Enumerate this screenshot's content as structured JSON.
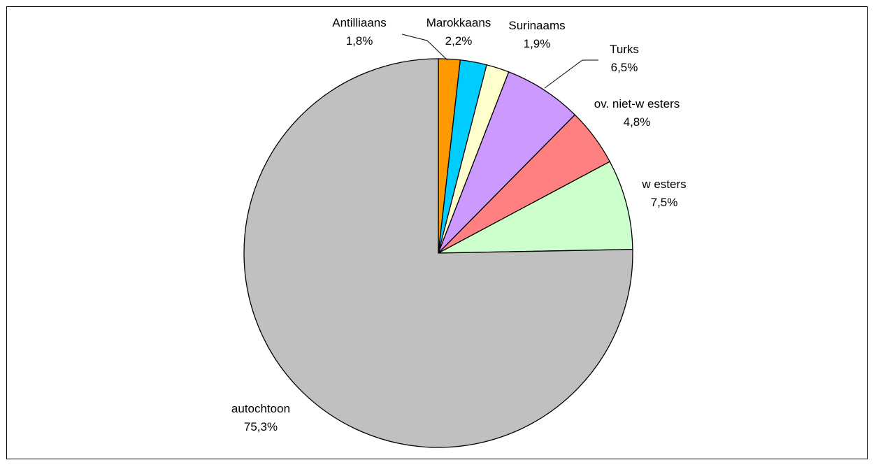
{
  "chart_data": {
    "type": "pie",
    "title": "",
    "start_angle_deg": 0,
    "direction": "clockwise",
    "legend": "none",
    "slices": [
      {
        "name": "Antilliaans",
        "value": 1.8,
        "label": "1,8%",
        "color": "#ff9900"
      },
      {
        "name": "Marokkaans",
        "value": 2.2,
        "label": "2,2%",
        "color": "#00ccff"
      },
      {
        "name": "Surinaams",
        "value": 1.9,
        "label": "1,9%",
        "color": "#ffffcc"
      },
      {
        "name": "Turks",
        "value": 6.5,
        "label": "6,5%",
        "color": "#cc99ff"
      },
      {
        "name": "ov. niet-w esters",
        "value": 4.8,
        "label": "4,8%",
        "color": "#ff8080"
      },
      {
        "name": "w esters",
        "value": 7.5,
        "label": "7,5%",
        "color": "#ccffcc"
      },
      {
        "name": "autochtoon",
        "value": 75.3,
        "label": "75,3%",
        "color": "#c0c0c0"
      }
    ]
  }
}
